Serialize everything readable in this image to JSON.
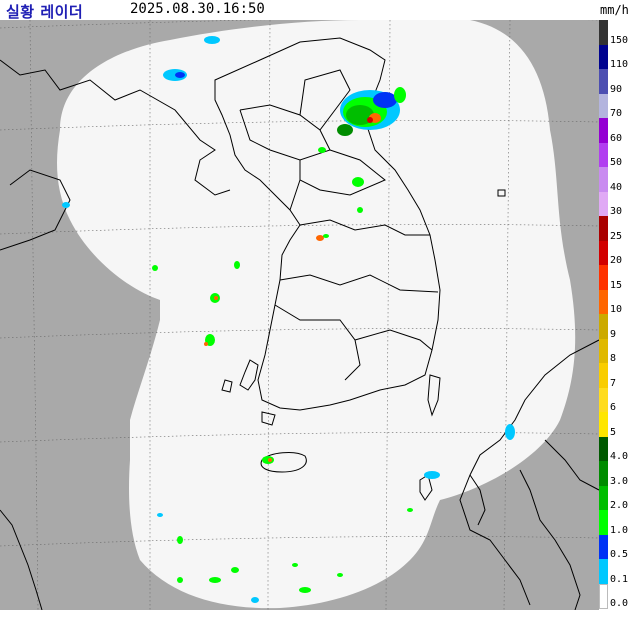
{
  "header": {
    "title": "실황 레이더",
    "timestamp": "2025.08.30.16:50",
    "unit": "mm/h"
  },
  "legend": [
    {
      "label": "150",
      "color": "#333333"
    },
    {
      "label": "110",
      "color": "#00038f"
    },
    {
      "label": "90",
      "color": "#4c4eb1"
    },
    {
      "label": "70",
      "color": "#b3b4de"
    },
    {
      "label": "60",
      "color": "#9400d3"
    },
    {
      "label": "50",
      "color": "#b13ff0"
    },
    {
      "label": "40",
      "color": "#c98bf0"
    },
    {
      "label": "30",
      "color": "#e0a9f5"
    },
    {
      "label": "25",
      "color": "#aa0000"
    },
    {
      "label": "20",
      "color": "#d20000"
    },
    {
      "label": "15",
      "color": "#ff3200"
    },
    {
      "label": "10",
      "color": "#ff6600"
    },
    {
      "label": "9",
      "color": "#ccaa00"
    },
    {
      "label": "8",
      "color": "#e0b900"
    },
    {
      "label": "7",
      "color": "#f9cd00"
    },
    {
      "label": "6",
      "color": "#ffdc1f"
    },
    {
      "label": "5",
      "color": "#ffe600"
    },
    {
      "label": "4.0",
      "color": "#005a00"
    },
    {
      "label": "3.0",
      "color": "#008c00"
    },
    {
      "label": "2.0",
      "color": "#00be00"
    },
    {
      "label": "1.0",
      "color": "#00ff00"
    },
    {
      "label": "0.5",
      "color": "#0033f5"
    },
    {
      "label": "0.1",
      "color": "#00c8ff"
    },
    {
      "label": "0.0",
      "color": "#ffffff"
    }
  ],
  "map": {
    "no_coverage_color": "#a9a9a9",
    "coverage_color": "#f6f6f6",
    "outline_color": "#000000"
  }
}
